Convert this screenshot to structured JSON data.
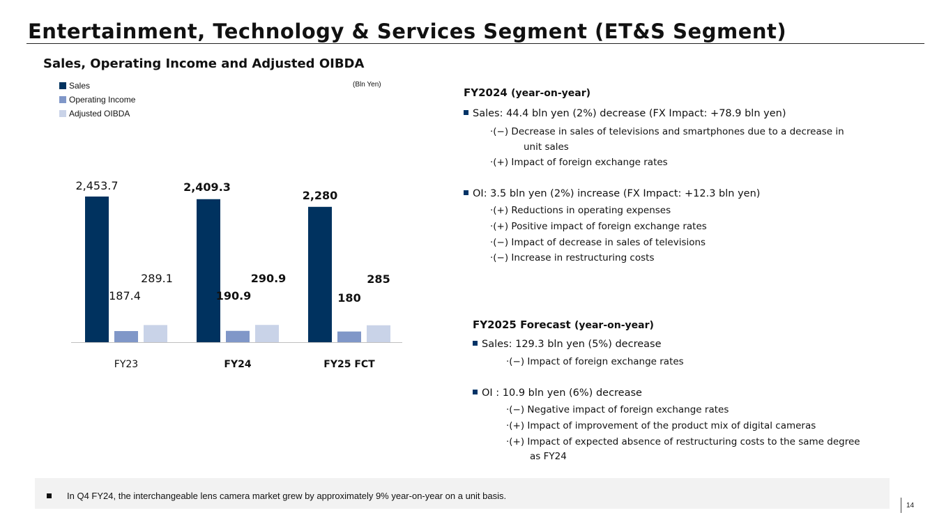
{
  "slide": {
    "title": "Entertainment, Technology & Services Segment (ET&S Segment)",
    "page_number": "14"
  },
  "colors": {
    "sales": "#00325f",
    "operating_income": "#8097c8",
    "adjusted_oibda": "#c9d3e8",
    "axis": "#bfbfbf"
  },
  "chart_data": {
    "type": "bar",
    "title": "Sales, Operating Income and Adjusted OIBDA",
    "unit": "(Bln Yen)",
    "categories": [
      "FY23",
      "FY24",
      "FY25 FCT"
    ],
    "bold_categories": [
      false,
      true,
      true
    ],
    "series": [
      {
        "name": "Sales",
        "values": [
          2453.7,
          2409.3,
          2280
        ],
        "labels": [
          "2,453.7",
          "2,409.3",
          "2,280"
        ]
      },
      {
        "name": "Operating Income",
        "values": [
          187.4,
          190.9,
          180
        ],
        "labels": [
          "187.4",
          "190.9",
          "180"
        ]
      },
      {
        "name": "Adjusted OIBDA",
        "values": [
          289.1,
          290.9,
          285
        ],
        "labels": [
          "289.1",
          "290.9",
          "285"
        ]
      }
    ],
    "legend_position": "top-left",
    "ylim": [
      0,
      2453.7
    ],
    "grid": false
  },
  "fy2024": {
    "heading": "FY2024",
    "heading_sub": "(year-on-year)",
    "sales_line": "Sales: 44.4 bln yen (2%) decrease (FX Impact: +78.9 bln yen)",
    "sales_items": [
      "·(−) Decrease in sales of televisions and smartphones due to a decrease in",
      "unit sales",
      "·(+) Impact of foreign exchange rates"
    ],
    "oi_line": "OI: 3.5 bln yen (2%) increase (FX Impact: +12.3 bln yen)",
    "oi_items": [
      "·(+) Reductions in operating expenses",
      "·(+) Positive impact of foreign exchange rates",
      "·(−) Impact of decrease in sales of televisions",
      "·(−) Increase in restructuring costs"
    ]
  },
  "fy2025": {
    "heading": "FY2025 Forecast",
    "heading_sub": "(year-on-year)",
    "sales_line": "Sales: 129.3 bln yen (5%) decrease",
    "sales_items": [
      "·(−) Impact of foreign exchange rates"
    ],
    "oi_line": "OI : 10.9 bln yen (6%) decrease",
    "oi_items": [
      "·(−) Negative impact of foreign exchange rates",
      "·(+) Impact of improvement of the product mix of digital cameras",
      "·(+) Impact of expected absence of restructuring costs to the same degree",
      "as FY24"
    ]
  },
  "footer": {
    "note": "In Q4 FY24, the interchangeable lens camera market grew by approximately 9% year-on-year on a unit basis."
  }
}
